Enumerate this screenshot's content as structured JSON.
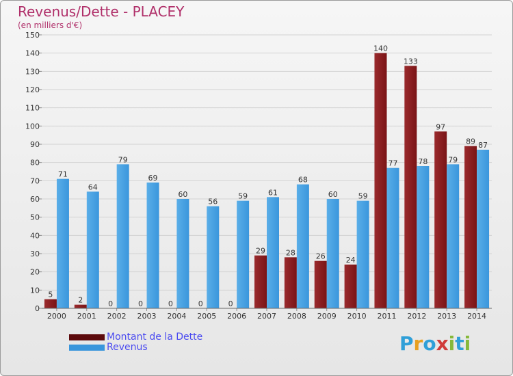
{
  "title": "Revenus/Dette - PLACEY",
  "subtitle": "(en milliers d'€)",
  "colors": {
    "debt": "#7a1416",
    "debt_light": "#9a2a2d",
    "revenue": "#3a96dc",
    "revenue_light": "#5aaee8",
    "title": "#b0306a",
    "legend_text": "#4a4af0"
  },
  "legend": [
    {
      "label": "Montant de la Dette",
      "color": "#5c0a0c"
    },
    {
      "label": "Revenus",
      "color": "#3a96dc"
    }
  ],
  "logo": {
    "text": "Proxiti"
  },
  "chart_data": {
    "type": "bar",
    "categories": [
      "2000",
      "2001",
      "2002",
      "2003",
      "2004",
      "2005",
      "2006",
      "2007",
      "2008",
      "2009",
      "2010",
      "2011",
      "2012",
      "2013",
      "2014"
    ],
    "series": [
      {
        "name": "Montant de la Dette",
        "values": [
          5,
          2,
          0,
          0,
          0,
          0,
          0,
          29,
          28,
          26,
          24,
          140,
          133,
          97,
          89
        ]
      },
      {
        "name": "Revenus",
        "values": [
          71,
          64,
          79,
          69,
          60,
          56,
          59,
          61,
          68,
          60,
          59,
          77,
          78,
          79,
          87
        ]
      }
    ],
    "ylim": [
      0,
      150
    ],
    "yticks": [
      0,
      10,
      20,
      30,
      40,
      50,
      60,
      70,
      80,
      90,
      100,
      110,
      120,
      130,
      140,
      150
    ],
    "title": "Revenus/Dette - PLACEY",
    "ylabel": "(en milliers d'€)",
    "xlabel": "",
    "grid": true,
    "legend_position": "bottom-left"
  }
}
